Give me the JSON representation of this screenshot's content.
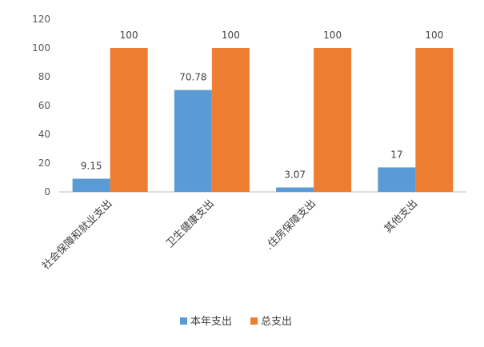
{
  "chart_data": {
    "type": "bar",
    "categories": [
      "社会保障和就业支出",
      "卫生健康支出",
      ".住房保障支出",
      "其他支出"
    ],
    "series": [
      {
        "name": "本年支出",
        "values": [
          9.15,
          70.78,
          3.07,
          17
        ],
        "labels": [
          "9.15",
          "70.78",
          "3.07",
          "17"
        ],
        "color": "#5B9BD5"
      },
      {
        "name": "总支出",
        "values": [
          100,
          100,
          100,
          100
        ],
        "labels": [
          "100",
          "100",
          "100",
          "100"
        ],
        "color": "#ED7D31"
      }
    ],
    "ylim": [
      0,
      120
    ],
    "yticks": [
      "0",
      "20",
      "40",
      "60",
      "80",
      "100",
      "120"
    ],
    "grid": false,
    "legend_position": "bottom"
  }
}
